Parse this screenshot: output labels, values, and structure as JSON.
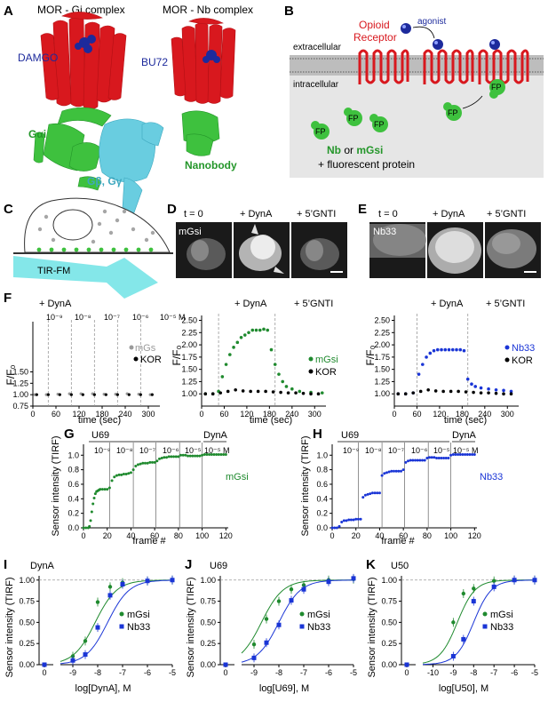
{
  "panel_labels": [
    "A",
    "B",
    "C",
    "D",
    "E",
    "F",
    "G",
    "H",
    "I",
    "J",
    "K"
  ],
  "panelA": {
    "left_title": "MOR - Gi complex",
    "right_title": "MOR - Nb complex",
    "ligand_left": "DAMGO",
    "ligand_right": "BU72",
    "gai": "Gαi",
    "gbg": "Gβ, Gγ",
    "nanobody": "Nanobody",
    "colors": {
      "receptor": "#d8181e",
      "ligand": "#1d2a9c",
      "gai": "#3ec13e",
      "gbg": "#69cde0",
      "nanobody": "#3ec13e"
    }
  },
  "panelB": {
    "agonist": "agonist",
    "receptor_line1": "Opioid",
    "receptor_line2": "Receptor",
    "extracellular": "extracellular",
    "intracellular": "intracellular",
    "fp": "FP",
    "nb": "Nb",
    "or": " or ",
    "mgsi": "mGsi",
    "fluor": "+ fluorescent protein"
  },
  "panelC": {
    "tirfm": "TIR-FM"
  },
  "panelD": {
    "t0": "t = 0",
    "dyn": "+ DynA",
    "gnti": "+ 5’GNTI",
    "tag": "mGsi"
  },
  "panelE": {
    "t0": "t = 0",
    "dyn": "+ DynA",
    "gnti": "+ 5’GNTI",
    "tag": "Nb33"
  },
  "panelF": {
    "ylabel": "F/F₀",
    "xlabel": "time (sec)",
    "dyn": "+ DynA",
    "gnti": "+ 5’GNTI",
    "concs": [
      "10⁻⁹",
      "10⁻⁸",
      "10⁻⁷",
      "10⁻⁶",
      "10⁻⁵ M"
    ],
    "legend_left": [
      "mGs",
      "KOR"
    ],
    "legend_mid": [
      "mGsi",
      "KOR"
    ],
    "legend_right": [
      "Nb33",
      "KOR"
    ]
  },
  "panelG": {
    "ylabel": "Sensor intensity (TIRF)",
    "xlabel": "frame #",
    "u69": "U69",
    "dyna": "DynA",
    "concs": [
      "10⁻⁹",
      "10⁻⁸",
      "10⁻⁷",
      "10⁻⁶",
      "10⁻⁵"
    ],
    "dyna_conc": "10⁻⁵ M",
    "series": "mGsi"
  },
  "panelH": {
    "ylabel": "Sensor intensity (TIRF)",
    "xlabel": "frame #",
    "u69": "U69",
    "dyna": "DynA",
    "concs": [
      "10⁻⁹",
      "10⁻⁸",
      "10⁻⁷",
      "10⁻⁶",
      "10⁻⁵"
    ],
    "dyna_conc": "10⁻⁵ M",
    "series": "Nb33"
  },
  "panelI": {
    "title": "DynA",
    "xlabel": "log[DynA], M",
    "ylabel": "Sensor intensity (TIRF)",
    "legend": [
      "mGsi",
      "Nb33"
    ]
  },
  "panelJ": {
    "title": "U69",
    "xlabel": "log[U69], M",
    "ylabel": "Sensor intensity (TIRF)",
    "legend": [
      "mGsi",
      "Nb33"
    ]
  },
  "panelK": {
    "title": "U50",
    "xlabel": "log[U50], M",
    "ylabel": "Sensor intensity (TIRF)",
    "legend": [
      "mGsi",
      "Nb33"
    ]
  },
  "chart_data": [
    {
      "id": "F-left",
      "type": "scatter",
      "xlabel": "time (sec)",
      "ylabel": "F/F₀",
      "xlim": [
        0,
        330
      ],
      "ylim": [
        0.75,
        2.6
      ],
      "xticks": [
        0,
        60,
        120,
        180,
        240,
        300
      ],
      "yticks": [
        0.75,
        1.0,
        1.25,
        1.5
      ],
      "series": [
        {
          "name": "mGs",
          "color": "#9a9a9a",
          "x": [
            5,
            35,
            65,
            95,
            125,
            155,
            185,
            215,
            245,
            275,
            305
          ],
          "y": [
            1.0,
            1.0,
            1.01,
            1.02,
            1.02,
            1.02,
            1.01,
            1.01,
            1.02,
            1.01,
            1.0
          ]
        },
        {
          "name": "KOR",
          "color": "#000000",
          "x": [
            10,
            40,
            70,
            100,
            130,
            160,
            190,
            220,
            250,
            280,
            310
          ],
          "y": [
            1.0,
            1.0,
            1.0,
            1.0,
            1.0,
            1.0,
            1.0,
            1.0,
            1.0,
            1.0,
            1.0
          ]
        }
      ]
    },
    {
      "id": "F-mid",
      "type": "scatter",
      "xlabel": "time (sec)",
      "ylabel": "F/F₀",
      "xlim": [
        0,
        330
      ],
      "ylim": [
        0.75,
        2.6
      ],
      "xticks": [
        0,
        60,
        120,
        180,
        240,
        300
      ],
      "yticks": [
        1.0,
        1.25,
        1.5,
        1.75,
        2.0,
        2.25,
        2.5
      ],
      "series": [
        {
          "name": "mGsi",
          "color": "#1f8a2e",
          "x": [
            10,
            30,
            45,
            55,
            65,
            75,
            85,
            95,
            105,
            115,
            125,
            135,
            145,
            155,
            165,
            175,
            185,
            195,
            205,
            215,
            225,
            240,
            260,
            290,
            320
          ],
          "y": [
            1.0,
            1.0,
            1.05,
            1.35,
            1.6,
            1.8,
            1.95,
            2.05,
            2.15,
            2.2,
            2.25,
            2.3,
            2.3,
            2.3,
            2.32,
            2.3,
            1.9,
            1.6,
            1.4,
            1.25,
            1.15,
            1.1,
            1.05,
            1.03,
            1.02
          ]
        },
        {
          "name": "KOR",
          "color": "#000000",
          "x": [
            10,
            30,
            50,
            70,
            90,
            110,
            130,
            150,
            170,
            190,
            210,
            230,
            250,
            270,
            290,
            310
          ],
          "y": [
            1.0,
            1.0,
            1.02,
            1.05,
            1.08,
            1.06,
            1.05,
            1.05,
            1.05,
            1.04,
            1.03,
            1.02,
            1.02,
            1.01,
            1.0,
            1.0
          ]
        }
      ]
    },
    {
      "id": "F-right",
      "type": "scatter",
      "xlabel": "time (sec)",
      "ylabel": "F/F₀",
      "xlim": [
        0,
        330
      ],
      "ylim": [
        0.75,
        2.6
      ],
      "xticks": [
        0,
        60,
        120,
        180,
        240,
        300
      ],
      "yticks": [
        1.0,
        1.25,
        1.5,
        1.75,
        2.0,
        2.25,
        2.5
      ],
      "series": [
        {
          "name": "Nb33",
          "color": "#1a35d6",
          "x": [
            10,
            30,
            50,
            65,
            75,
            85,
            95,
            105,
            115,
            125,
            135,
            145,
            155,
            165,
            175,
            185,
            195,
            205,
            215,
            230,
            250,
            270,
            290,
            310
          ],
          "y": [
            1.0,
            1.0,
            1.02,
            1.4,
            1.6,
            1.75,
            1.83,
            1.88,
            1.9,
            1.9,
            1.9,
            1.9,
            1.9,
            1.9,
            1.9,
            1.88,
            1.3,
            1.2,
            1.15,
            1.12,
            1.1,
            1.08,
            1.07,
            1.05
          ]
        },
        {
          "name": "KOR",
          "color": "#000000",
          "x": [
            10,
            30,
            50,
            70,
            90,
            110,
            130,
            150,
            170,
            190,
            210,
            230,
            250,
            270,
            290,
            310
          ],
          "y": [
            1.0,
            1.0,
            1.02,
            1.05,
            1.08,
            1.06,
            1.05,
            1.05,
            1.05,
            1.04,
            1.03,
            1.02,
            1.02,
            1.01,
            1.0,
            1.0
          ]
        }
      ]
    },
    {
      "id": "G",
      "type": "scatter",
      "xlabel": "frame #",
      "ylabel": "Sensor intensity (TIRF)",
      "xlim": [
        0,
        122
      ],
      "ylim": [
        0,
        1.15
      ],
      "xticks": [
        0,
        20,
        40,
        60,
        80,
        100,
        120
      ],
      "yticks": [
        0.0,
        0.2,
        0.4,
        0.6,
        0.8,
        1.0
      ],
      "series": [
        {
          "name": "mGsi",
          "color": "#1f8a2e",
          "x": [
            0,
            2,
            4,
            5,
            6,
            7,
            8,
            9,
            10,
            11,
            12,
            13,
            14,
            16,
            18,
            20,
            22,
            24,
            26,
            28,
            30,
            32,
            34,
            36,
            38,
            40,
            42,
            44,
            46,
            48,
            50,
            52,
            54,
            56,
            58,
            60,
            62,
            64,
            66,
            68,
            70,
            72,
            74,
            76,
            78,
            80,
            82,
            84,
            86,
            88,
            90,
            92,
            94,
            96,
            98,
            100,
            102,
            104,
            106,
            108,
            110,
            112,
            114,
            116,
            118,
            120
          ],
          "y": [
            0.0,
            0.0,
            0.0,
            0.02,
            0.1,
            0.22,
            0.33,
            0.41,
            0.47,
            0.5,
            0.51,
            0.52,
            0.53,
            0.53,
            0.53,
            0.53,
            0.55,
            0.65,
            0.7,
            0.72,
            0.73,
            0.73,
            0.74,
            0.74,
            0.75,
            0.76,
            0.8,
            0.85,
            0.87,
            0.88,
            0.89,
            0.89,
            0.89,
            0.9,
            0.9,
            0.9,
            0.92,
            0.95,
            0.96,
            0.97,
            0.97,
            0.98,
            0.98,
            0.98,
            0.98,
            0.98,
            1.0,
            1.0,
            1.0,
            0.99,
            0.99,
            0.99,
            0.99,
            0.99,
            0.99,
            1.0,
            1.01,
            1.01,
            1.01,
            1.01,
            1.01,
            1.01,
            1.01,
            1.01,
            1.01,
            1.01
          ]
        }
      ]
    },
    {
      "id": "H",
      "type": "scatter",
      "xlabel": "frame #",
      "ylabel": "Sensor intensity (TIRF)",
      "xlim": [
        0,
        122
      ],
      "ylim": [
        0,
        1.15
      ],
      "xticks": [
        0,
        20,
        40,
        60,
        80,
        100,
        120
      ],
      "yticks": [
        0.0,
        0.2,
        0.4,
        0.6,
        0.8,
        1.0
      ],
      "series": [
        {
          "name": "Nb33",
          "color": "#1a35d6",
          "x": [
            0,
            2,
            4,
            6,
            8,
            10,
            12,
            14,
            16,
            18,
            20,
            22,
            24,
            26,
            28,
            30,
            32,
            34,
            36,
            38,
            40,
            42,
            44,
            46,
            48,
            50,
            52,
            54,
            56,
            58,
            60,
            62,
            64,
            66,
            68,
            70,
            72,
            74,
            76,
            78,
            80,
            82,
            84,
            86,
            88,
            90,
            92,
            94,
            96,
            98,
            100,
            102,
            104,
            106,
            108,
            110,
            112,
            114,
            116,
            118,
            120
          ],
          "y": [
            0.0,
            0.0,
            0.0,
            0.02,
            0.08,
            0.1,
            0.1,
            0.11,
            0.11,
            0.11,
            0.12,
            0.12,
            0.12,
            0.42,
            0.45,
            0.46,
            0.47,
            0.48,
            0.48,
            0.48,
            0.48,
            0.72,
            0.75,
            0.76,
            0.77,
            0.78,
            0.78,
            0.78,
            0.78,
            0.78,
            0.8,
            0.9,
            0.92,
            0.93,
            0.93,
            0.93,
            0.93,
            0.93,
            0.93,
            0.93,
            0.96,
            0.97,
            0.97,
            0.97,
            0.96,
            0.96,
            0.96,
            0.96,
            0.96,
            0.96,
            1.0,
            1.01,
            1.01,
            1.01,
            1.01,
            1.01,
            1.01,
            1.01,
            1.01,
            1.01,
            1.01
          ]
        }
      ]
    },
    {
      "id": "I",
      "type": "line",
      "title": "DynA",
      "xlabel": "log[DynA], M",
      "ylabel": "Sensor intensity (TIRF)",
      "xticks": [
        "0",
        "-9",
        "-8",
        "-7",
        "-6",
        "-5"
      ],
      "yticks": [
        0.0,
        0.25,
        0.5,
        0.75,
        1.0
      ],
      "series": [
        {
          "name": "mGsi",
          "color": "#1f8a2e",
          "ec50": -8.1,
          "x": [
            -9,
            -8.5,
            -8,
            -7.5,
            -7,
            -6,
            -5
          ],
          "y": [
            0.1,
            0.28,
            0.74,
            0.92,
            0.97,
            0.99,
            1.0
          ]
        },
        {
          "name": "Nb33",
          "color": "#1a35d6",
          "ec50": -7.6,
          "x": [
            -9,
            -8.5,
            -8,
            -7.5,
            -7,
            -6,
            -5
          ],
          "y": [
            0.05,
            0.12,
            0.44,
            0.82,
            0.95,
            0.99,
            1.0
          ]
        }
      ]
    },
    {
      "id": "J",
      "type": "line",
      "title": "U69",
      "xlabel": "log[U69], M",
      "ylabel": "Sensor intensity (TIRF)",
      "xticks": [
        "0",
        "-9",
        "-8",
        "-7",
        "-6",
        "-5"
      ],
      "yticks": [
        0.0,
        0.25,
        0.5,
        0.75,
        1.0
      ],
      "series": [
        {
          "name": "mGsi",
          "color": "#1f8a2e",
          "ec50": -8.7,
          "x": [
            -9,
            -8.5,
            -8,
            -7.5,
            -7,
            -6,
            -5
          ],
          "y": [
            0.24,
            0.54,
            0.75,
            0.89,
            0.94,
            1.0,
            1.01
          ]
        },
        {
          "name": "Nb33",
          "color": "#1a35d6",
          "ec50": -8.0,
          "x": [
            -9,
            -8.5,
            -8,
            -7.5,
            -7,
            -6,
            -5
          ],
          "y": [
            0.08,
            0.26,
            0.47,
            0.76,
            0.89,
            0.98,
            1.02
          ]
        }
      ]
    },
    {
      "id": "K",
      "type": "line",
      "title": "U50",
      "xlabel": "log[U50], M",
      "ylabel": "Sensor intensity (TIRF)",
      "xticks": [
        "0",
        "-10",
        "-9",
        "-8",
        "-7",
        "-6",
        "-5"
      ],
      "yticks": [
        0.0,
        0.25,
        0.5,
        0.75,
        1.0
      ],
      "series": [
        {
          "name": "mGsi",
          "color": "#1f8a2e",
          "ec50": -8.8,
          "x": [
            -9,
            -8.5,
            -8,
            -7,
            -6,
            -5
          ],
          "y": [
            0.5,
            0.84,
            0.9,
            0.99,
            1.0,
            1.0
          ]
        },
        {
          "name": "Nb33",
          "color": "#1a35d6",
          "ec50": -8.0,
          "x": [
            -9,
            -8.5,
            -8,
            -7,
            -6,
            -5
          ],
          "y": [
            0.1,
            0.3,
            0.75,
            0.92,
            1.0,
            1.0
          ]
        }
      ]
    }
  ]
}
